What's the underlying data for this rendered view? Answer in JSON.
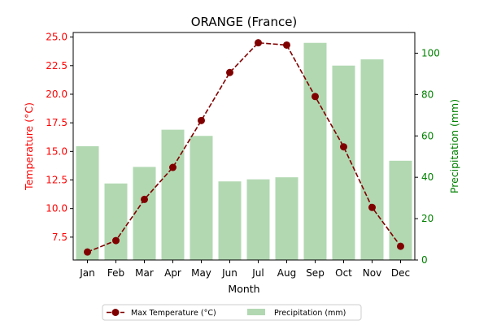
{
  "chart_data": {
    "type": "bar+line",
    "title": "ORANGE (France)",
    "xlabel": "Month",
    "categories": [
      "Jan",
      "Feb",
      "Mar",
      "Apr",
      "May",
      "Jun",
      "Jul",
      "Aug",
      "Sep",
      "Oct",
      "Nov",
      "Dec"
    ],
    "left_axis": {
      "label": "Temperature (°C)",
      "color": "#ff0000",
      "ylim": [
        5.5,
        25.4
      ],
      "ticks": [
        "7.5",
        "10.0",
        "12.5",
        "15.0",
        "17.5",
        "20.0",
        "22.5",
        "25.0"
      ]
    },
    "right_axis": {
      "label": "Precipitation (mm)",
      "color": "#008000",
      "ylim": [
        0,
        110
      ],
      "ticks": [
        "0",
        "20",
        "40",
        "60",
        "80",
        "100"
      ]
    },
    "series": [
      {
        "name": "Max Temperature (°C)",
        "type": "line",
        "axis": "left",
        "color": "#800000",
        "style": "dashed",
        "marker": "circle",
        "values": [
          6.2,
          7.2,
          10.8,
          13.6,
          17.7,
          21.9,
          24.5,
          24.3,
          19.8,
          15.4,
          10.1,
          6.7
        ]
      },
      {
        "name": "Precipitation (mm)",
        "type": "bar",
        "axis": "right",
        "color": "#b2d8b2",
        "values": [
          55,
          37,
          45,
          63,
          60,
          38,
          39,
          40,
          105,
          94,
          97,
          48
        ]
      }
    ],
    "legend_position": "bottom-center",
    "grid": false
  }
}
